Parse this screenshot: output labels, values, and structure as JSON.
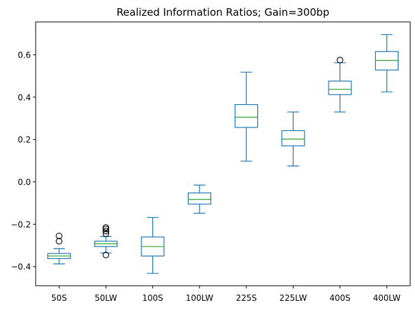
{
  "chart_data": {
    "type": "box",
    "title": "Realized Information Ratios; Gain=300bp",
    "xlabel": "",
    "ylabel": "",
    "ylim": [
      -0.49,
      0.755
    ],
    "y_ticks": [
      -0.4,
      -0.2,
      0.0,
      0.2,
      0.4,
      0.6
    ],
    "y_tick_labels": [
      "−0.4",
      "−0.2",
      "0.0",
      "0.2",
      "0.4",
      "0.6"
    ],
    "grid": false,
    "legend": "none",
    "colors": {
      "box": "#1f77b4",
      "median": "#2ca02c",
      "flier": "#000000"
    },
    "categories": [
      "50S",
      "50LW",
      "100S",
      "100LW",
      "225S",
      "225LW",
      "400S",
      "400LW"
    ],
    "boxes": [
      {
        "label": "50S",
        "whisker_low": -0.387,
        "q1": -0.362,
        "median": -0.35,
        "q3": -0.338,
        "whisker_high": -0.315,
        "fliers": [
          -0.255,
          -0.28
        ]
      },
      {
        "label": "50LW",
        "whisker_low": -0.335,
        "q1": -0.305,
        "median": -0.292,
        "q3": -0.28,
        "whisker_high": -0.258,
        "fliers": [
          -0.215,
          -0.222,
          -0.232,
          -0.245,
          -0.345
        ]
      },
      {
        "label": "100S",
        "whisker_low": -0.432,
        "q1": -0.35,
        "median": -0.305,
        "q3": -0.26,
        "whisker_high": -0.168,
        "fliers": []
      },
      {
        "label": "100LW",
        "whisker_low": -0.148,
        "q1": -0.105,
        "median": -0.083,
        "q3": -0.052,
        "whisker_high": -0.015,
        "fliers": []
      },
      {
        "label": "225S",
        "whisker_low": 0.098,
        "q1": 0.257,
        "median": 0.305,
        "q3": 0.365,
        "whisker_high": 0.518,
        "fliers": []
      },
      {
        "label": "225LW",
        "whisker_low": 0.075,
        "q1": 0.17,
        "median": 0.202,
        "q3": 0.242,
        "whisker_high": 0.33,
        "fliers": []
      },
      {
        "label": "400S",
        "whisker_low": 0.33,
        "q1": 0.412,
        "median": 0.437,
        "q3": 0.476,
        "whisker_high": 0.562,
        "fliers": [
          0.575
        ]
      },
      {
        "label": "400LW",
        "whisker_low": 0.425,
        "q1": 0.528,
        "median": 0.573,
        "q3": 0.615,
        "whisker_high": 0.695,
        "fliers": []
      }
    ]
  }
}
